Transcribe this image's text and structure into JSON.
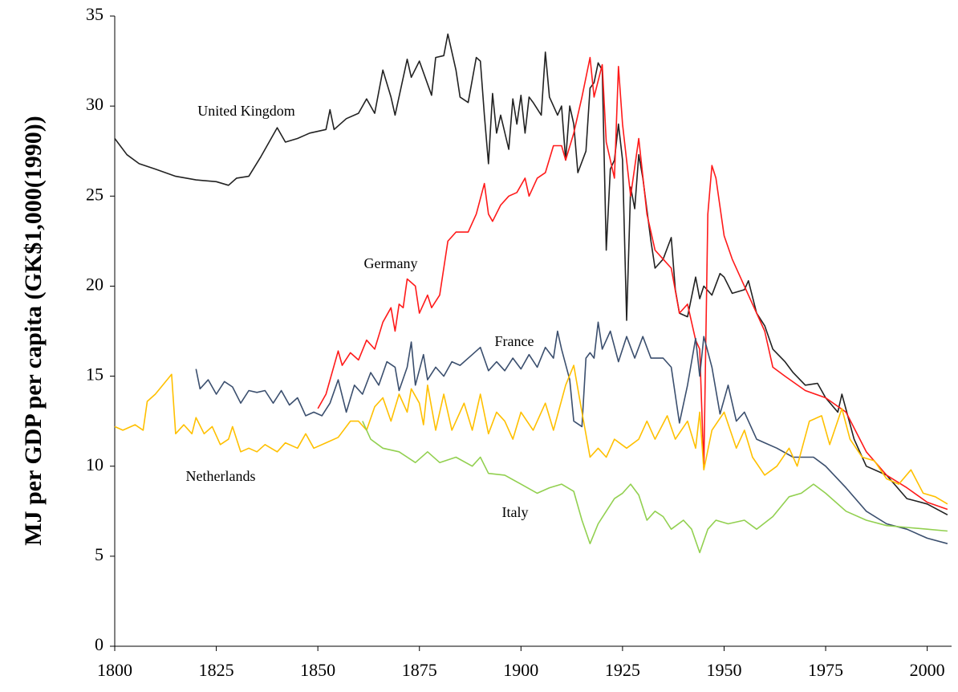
{
  "chart_data": {
    "type": "line",
    "y_label": "MJ per GDP per capita (GK$1,000(1990))",
    "xlim": [
      1800,
      2006
    ],
    "xticks": [
      1800,
      1825,
      1850,
      1875,
      1900,
      1925,
      1950,
      1975,
      2000
    ],
    "ylim": [
      0,
      35
    ],
    "yticks": [
      0,
      5,
      10,
      15,
      20,
      25,
      30,
      35
    ],
    "grid": false,
    "series": [
      {
        "name": "United Kingdom",
        "color": "#222222",
        "x": [
          1800,
          1803,
          1806,
          1810,
          1815,
          1820,
          1825,
          1828,
          1830,
          1833,
          1836,
          1840,
          1842,
          1845,
          1848,
          1852,
          1853,
          1854,
          1857,
          1860,
          1862,
          1864,
          1866,
          1868,
          1869,
          1872,
          1873,
          1875,
          1878,
          1879,
          1881,
          1882,
          1884,
          1885,
          1887,
          1889,
          1890,
          1891,
          1892,
          1893,
          1894,
          1895,
          1897,
          1898,
          1899,
          1900,
          1901,
          1902,
          1903,
          1905,
          1906,
          1907,
          1909,
          1910,
          1911,
          1912,
          1913,
          1914,
          1916,
          1917,
          1918,
          1919,
          1920,
          1921,
          1922,
          1923,
          1924,
          1925,
          1926,
          1927,
          1928,
          1929,
          1930,
          1932,
          1933,
          1935,
          1937,
          1938,
          1939,
          1941,
          1943,
          1944,
          1945,
          1947,
          1949,
          1950,
          1952,
          1955,
          1956,
          1958,
          1960,
          1962,
          1965,
          1967,
          1970,
          1973,
          1975,
          1978,
          1979,
          1982,
          1985,
          1990,
          1995,
          2000,
          2005
        ],
        "values": [
          28.2,
          27.3,
          26.8,
          26.5,
          26.1,
          25.9,
          25.8,
          25.6,
          26.0,
          26.1,
          27.2,
          28.8,
          28.0,
          28.2,
          28.5,
          28.7,
          29.8,
          28.7,
          29.3,
          29.6,
          30.4,
          29.6,
          32.0,
          30.5,
          29.5,
          32.6,
          31.6,
          32.5,
          30.6,
          32.7,
          32.8,
          34.0,
          32.0,
          30.5,
          30.2,
          32.7,
          32.5,
          29.5,
          26.8,
          30.7,
          28.5,
          29.5,
          27.6,
          30.4,
          29.0,
          30.6,
          28.5,
          30.5,
          30.2,
          29.5,
          33.0,
          30.5,
          29.5,
          30.0,
          27.0,
          30.0,
          29.0,
          26.3,
          27.5,
          31.0,
          31.3,
          32.4,
          32.0,
          22.0,
          26.5,
          27.0,
          29.0,
          27.0,
          18.1,
          25.5,
          24.3,
          27.3,
          26.0,
          22.5,
          21.0,
          21.5,
          22.7,
          19.8,
          18.5,
          18.3,
          20.5,
          19.3,
          20.0,
          19.5,
          20.7,
          20.5,
          19.6,
          19.8,
          20.3,
          18.5,
          17.8,
          16.5,
          15.8,
          15.2,
          14.5,
          14.6,
          13.8,
          13.0,
          14.0,
          11.5,
          10.0,
          9.5,
          8.2,
          7.9,
          7.3
        ]
      },
      {
        "name": "Germany",
        "color": "#ff1a1a",
        "x": [
          1850,
          1852,
          1855,
          1856,
          1858,
          1860,
          1862,
          1864,
          1866,
          1868,
          1869,
          1870,
          1871,
          1872,
          1874,
          1875,
          1877,
          1878,
          1880,
          1882,
          1884,
          1887,
          1889,
          1891,
          1892,
          1893,
          1895,
          1897,
          1899,
          1901,
          1902,
          1904,
          1906,
          1908,
          1910,
          1911,
          1913,
          1915,
          1917,
          1918,
          1920,
          1921,
          1923,
          1924,
          1925,
          1927,
          1929,
          1931,
          1933,
          1935,
          1937,
          1939,
          1941,
          1943,
          1944,
          1945,
          1946,
          1947,
          1948,
          1950,
          1952,
          1954,
          1956,
          1958,
          1960,
          1962,
          1965,
          1970,
          1975,
          1980,
          1985,
          1990,
          1995,
          2000,
          2005
        ],
        "values": [
          13.2,
          14.0,
          16.4,
          15.6,
          16.3,
          15.9,
          17.0,
          16.5,
          18.0,
          18.8,
          17.5,
          19.0,
          18.8,
          20.4,
          20.0,
          18.5,
          19.5,
          18.8,
          19.5,
          22.5,
          23.0,
          23.0,
          24.0,
          25.7,
          24.0,
          23.6,
          24.5,
          25.0,
          25.2,
          26.0,
          25.0,
          26.0,
          26.3,
          27.8,
          27.8,
          27.0,
          28.5,
          30.5,
          32.7,
          30.5,
          32.3,
          28.0,
          26.0,
          32.2,
          29.0,
          25.0,
          28.2,
          24.0,
          22.0,
          21.5,
          21.0,
          18.5,
          19.0,
          17.0,
          16.5,
          9.9,
          24.0,
          26.7,
          26.0,
          22.8,
          21.5,
          20.5,
          19.5,
          18.5,
          17.5,
          15.5,
          15.0,
          14.2,
          13.8,
          13.0,
          10.8,
          9.5,
          8.8,
          8.0,
          7.6
        ]
      },
      {
        "name": "France",
        "color": "#3b4f6e",
        "x": [
          1820,
          1821,
          1823,
          1825,
          1827,
          1829,
          1831,
          1833,
          1835,
          1837,
          1839,
          1841,
          1843,
          1845,
          1847,
          1849,
          1851,
          1853,
          1855,
          1857,
          1859,
          1861,
          1863,
          1865,
          1867,
          1869,
          1870,
          1872,
          1873,
          1874,
          1876,
          1877,
          1879,
          1881,
          1883,
          1885,
          1888,
          1890,
          1892,
          1894,
          1896,
          1898,
          1900,
          1902,
          1904,
          1906,
          1908,
          1909,
          1910,
          1912,
          1913,
          1915,
          1916,
          1917,
          1918,
          1919,
          1920,
          1922,
          1924,
          1926,
          1928,
          1930,
          1932,
          1935,
          1937,
          1939,
          1941,
          1943,
          1944,
          1945,
          1947,
          1949,
          1951,
          1953,
          1955,
          1958,
          1960,
          1963,
          1967,
          1972,
          1975,
          1980,
          1985,
          1990,
          1995,
          2000,
          2005
        ],
        "values": [
          15.4,
          14.3,
          14.8,
          14.0,
          14.7,
          14.4,
          13.5,
          14.2,
          14.1,
          14.2,
          13.5,
          14.2,
          13.4,
          13.8,
          12.8,
          13.0,
          12.8,
          13.5,
          14.8,
          13.0,
          14.5,
          14.0,
          15.2,
          14.5,
          15.8,
          15.5,
          14.2,
          15.5,
          16.9,
          14.5,
          16.2,
          14.8,
          15.5,
          15.0,
          15.8,
          15.6,
          16.2,
          16.6,
          15.3,
          15.8,
          15.3,
          16.0,
          15.4,
          16.2,
          15.5,
          16.6,
          16.0,
          17.5,
          16.5,
          14.8,
          12.5,
          12.2,
          16.0,
          16.3,
          16.0,
          18.0,
          16.5,
          17.5,
          15.8,
          17.2,
          16.0,
          17.2,
          16.0,
          16.0,
          15.5,
          12.4,
          14.5,
          17.1,
          15.0,
          17.2,
          15.5,
          12.9,
          14.5,
          12.5,
          13.0,
          11.5,
          11.3,
          11.0,
          10.5,
          10.5,
          10.0,
          8.8,
          7.5,
          6.8,
          6.5,
          6.0,
          5.7
        ]
      },
      {
        "name": "Netherlands",
        "color": "#ffc000",
        "x": [
          1800,
          1802,
          1805,
          1807,
          1808,
          1810,
          1814,
          1815,
          1817,
          1819,
          1820,
          1822,
          1824,
          1826,
          1828,
          1829,
          1831,
          1833,
          1835,
          1837,
          1840,
          1842,
          1845,
          1847,
          1849,
          1852,
          1855,
          1858,
          1860,
          1862,
          1864,
          1866,
          1868,
          1870,
          1872,
          1873,
          1875,
          1876,
          1877,
          1879,
          1881,
          1883,
          1886,
          1888,
          1890,
          1892,
          1894,
          1896,
          1898,
          1900,
          1903,
          1906,
          1908,
          1911,
          1913,
          1915,
          1917,
          1919,
          1921,
          1923,
          1926,
          1929,
          1931,
          1933,
          1936,
          1938,
          1941,
          1943,
          1944,
          1945,
          1947,
          1950,
          1953,
          1955,
          1957,
          1960,
          1963,
          1966,
          1968,
          1971,
          1974,
          1976,
          1979,
          1981,
          1984,
          1987,
          1990,
          1993,
          1996,
          1999,
          2002,
          2005
        ],
        "values": [
          12.2,
          12.0,
          12.3,
          12.0,
          13.6,
          14.0,
          15.1,
          11.8,
          12.3,
          11.8,
          12.7,
          11.8,
          12.2,
          11.2,
          11.5,
          12.2,
          10.8,
          11.0,
          10.8,
          11.2,
          10.8,
          11.3,
          11.0,
          11.8,
          11.0,
          11.3,
          11.6,
          12.5,
          12.5,
          12.0,
          13.3,
          13.8,
          12.5,
          14.0,
          13.0,
          14.3,
          13.5,
          12.3,
          14.5,
          12.0,
          14.0,
          12.0,
          13.5,
          12.0,
          14.0,
          11.8,
          13.0,
          12.5,
          11.5,
          13.0,
          12.0,
          13.5,
          12.0,
          14.5,
          15.6,
          13.0,
          10.5,
          11.0,
          10.5,
          11.5,
          11.0,
          11.5,
          12.5,
          11.5,
          12.8,
          11.5,
          12.5,
          11.0,
          13.0,
          9.8,
          12.0,
          13.0,
          11.0,
          12.0,
          10.5,
          9.5,
          10.0,
          11.0,
          10.0,
          12.5,
          12.8,
          11.2,
          13.2,
          11.5,
          10.5,
          10.3,
          9.3,
          9.0,
          9.8,
          8.5,
          8.3,
          7.9
        ]
      },
      {
        "name": "Italy",
        "color": "#92d050",
        "x": [
          1861,
          1863,
          1866,
          1870,
          1874,
          1877,
          1880,
          1884,
          1888,
          1890,
          1892,
          1896,
          1900,
          1904,
          1907,
          1910,
          1913,
          1915,
          1917,
          1919,
          1921,
          1923,
          1925,
          1927,
          1929,
          1931,
          1933,
          1935,
          1937,
          1940,
          1942,
          1944,
          1946,
          1948,
          1951,
          1955,
          1958,
          1962,
          1966,
          1969,
          1972,
          1975,
          1980,
          1985,
          1990,
          1995,
          2000,
          2005
        ],
        "values": [
          12.5,
          11.5,
          11.0,
          10.8,
          10.2,
          10.8,
          10.2,
          10.5,
          10.0,
          10.5,
          9.6,
          9.5,
          9.0,
          8.5,
          8.8,
          9.0,
          8.6,
          7.0,
          5.7,
          6.8,
          7.5,
          8.2,
          8.5,
          9.0,
          8.4,
          7.0,
          7.5,
          7.2,
          6.5,
          7.0,
          6.5,
          5.2,
          6.5,
          7.0,
          6.8,
          7.0,
          6.5,
          7.2,
          8.3,
          8.5,
          9.0,
          8.5,
          7.5,
          7.0,
          6.7,
          6.6,
          6.5,
          6.4
        ]
      }
    ]
  }
}
